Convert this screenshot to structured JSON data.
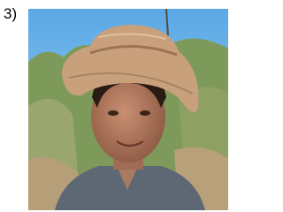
{
  "label": "3)"
}
